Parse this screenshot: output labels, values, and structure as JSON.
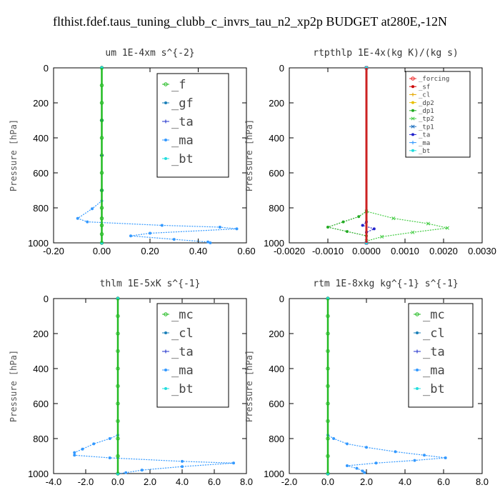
{
  "title": "flthist.fdef.taus_tuning_clubb_c_invrs_tau_n2_xp2p  BUDGET at280E,-12N",
  "chart_data": [
    {
      "type": "line",
      "title": "um  1E-4xm s^{-2}",
      "ylabel": "Pressure [hPa]",
      "xlim": [
        -0.2,
        0.6
      ],
      "ylim": [
        1000,
        0
      ],
      "xticks": [
        "-0.20",
        "0.00",
        "0.20",
        "0.40",
        "0.60"
      ],
      "yticks": [
        "0",
        "200",
        "400",
        "600",
        "800",
        "1000"
      ],
      "legend": "large",
      "series": [
        {
          "name": "_f",
          "color": "#22bb22",
          "points": [
            [
              0.0,
              0
            ],
            [
              0.0,
              100
            ],
            [
              0.0,
              200
            ],
            [
              0.0,
              300
            ],
            [
              0.0,
              400
            ],
            [
              0.0,
              500
            ],
            [
              0.0,
              600
            ],
            [
              0.0,
              700
            ],
            [
              0.0,
              800
            ],
            [
              0.0,
              860
            ],
            [
              0.0,
              900
            ],
            [
              0.0,
              950
            ],
            [
              0.0,
              1000
            ]
          ]
        },
        {
          "name": "_gf",
          "color": "#1a7fb8",
          "points": [
            [
              0.0,
              0
            ],
            [
              0.0,
              300
            ],
            [
              0.0,
              700
            ],
            [
              0.0,
              1000
            ]
          ]
        },
        {
          "name": "_ta",
          "color": "#2233cc",
          "points": [
            [
              0.0,
              0
            ],
            [
              0.0,
              500
            ],
            [
              0.0,
              1000
            ]
          ]
        },
        {
          "name": "_ma",
          "color": "#3399ff",
          "points": [
            [
              0.0,
              0
            ],
            [
              0.0,
              760
            ],
            [
              -0.04,
              805
            ],
            [
              -0.1,
              860
            ],
            [
              -0.06,
              880
            ],
            [
              0.25,
              900
            ],
            [
              0.49,
              910
            ],
            [
              0.56,
              920
            ],
            [
              0.2,
              945
            ],
            [
              0.12,
              960
            ],
            [
              0.3,
              980
            ],
            [
              0.44,
              995
            ],
            [
              0.45,
              1000
            ]
          ]
        },
        {
          "name": "_bt",
          "color": "#22dddd",
          "points": [
            [
              0.0,
              0
            ],
            [
              0.0,
              1000
            ]
          ]
        }
      ]
    },
    {
      "type": "line",
      "title": "rtpthlp  1E-4x(kg K)/(kg s)",
      "ylabel": "Pressure [hPa]",
      "xlim": [
        -0.002,
        0.003
      ],
      "ylim": [
        1000,
        0
      ],
      "xticks": [
        "-0.0020",
        "-0.0010",
        "0.0000",
        "0.0010",
        "0.0020",
        "0.0030"
      ],
      "yticks": [
        "0",
        "200",
        "400",
        "600",
        "800",
        "1000"
      ],
      "legend": "small",
      "series": [
        {
          "name": "_forcing",
          "color": "#ee2222",
          "points": [
            [
              0.0,
              0
            ],
            [
              0.0,
              1000
            ]
          ]
        },
        {
          "name": "_sf",
          "color": "#cc0000",
          "points": [
            [
              0.0,
              0
            ],
            [
              0.0,
              1000
            ]
          ]
        },
        {
          "name": "_cl",
          "color": "#e6a800",
          "points": [
            [
              0.0,
              0
            ],
            [
              0.0,
              1000
            ]
          ]
        },
        {
          "name": "_dp2",
          "color": "#e8c000",
          "points": [
            [
              0.0,
              0
            ],
            [
              0.0,
              1000
            ]
          ]
        },
        {
          "name": "_dp1",
          "color": "#22aa22",
          "points": [
            [
              0.0,
              0
            ],
            [
              0.0,
              820
            ],
            [
              -0.0002,
              850
            ],
            [
              -0.0006,
              880
            ],
            [
              -0.001,
              910
            ],
            [
              -0.0005,
              935
            ],
            [
              0.0,
              960
            ],
            [
              0.0,
              1000
            ]
          ]
        },
        {
          "name": "_tp2",
          "color": "#44cc44",
          "points": [
            [
              0.0,
              0
            ],
            [
              0.0,
              820
            ],
            [
              0.0007,
              860
            ],
            [
              0.0016,
              890
            ],
            [
              0.0021,
              915
            ],
            [
              0.0012,
              940
            ],
            [
              0.0004,
              965
            ],
            [
              0.0,
              990
            ]
          ]
        },
        {
          "name": "_tp1",
          "color": "#1a6fbf",
          "points": [
            [
              0.0,
              0
            ],
            [
              0.0,
              1000
            ]
          ]
        },
        {
          "name": "_ta",
          "color": "#2222cc",
          "points": [
            [
              0.0,
              0
            ],
            [
              0.0,
              880
            ],
            [
              -0.0001,
              900
            ],
            [
              0.0002,
              920
            ],
            [
              0.0,
              940
            ],
            [
              0.0,
              1000
            ]
          ]
        },
        {
          "name": "_ma",
          "color": "#3399ff",
          "points": [
            [
              0.0,
              0
            ],
            [
              0.0,
              1000
            ]
          ]
        },
        {
          "name": "_bt",
          "color": "#22dddd",
          "points": [
            [
              0.0,
              0
            ],
            [
              0.0,
              1000
            ]
          ]
        }
      ]
    },
    {
      "type": "line",
      "title": "thlm  1E-5xK s^{-1}",
      "ylabel": "Pressure [hPa]",
      "xlim": [
        -4.0,
        8.0
      ],
      "ylim": [
        1000,
        0
      ],
      "xticks": [
        "-4.0",
        "-2.0",
        "0.0",
        "2.0",
        "4.0",
        "6.0",
        "8.0"
      ],
      "yticks": [
        "0",
        "200",
        "400",
        "600",
        "800",
        "1000"
      ],
      "legend": "large",
      "series": [
        {
          "name": "_mc",
          "color": "#22bb22",
          "points": [
            [
              0.0,
              0
            ],
            [
              0.0,
              100
            ],
            [
              0.0,
              200
            ],
            [
              0.0,
              300
            ],
            [
              0.0,
              400
            ],
            [
              0.0,
              500
            ],
            [
              0.0,
              600
            ],
            [
              0.0,
              700
            ],
            [
              0.0,
              800
            ],
            [
              0.0,
              900
            ],
            [
              0.0,
              1000
            ]
          ]
        },
        {
          "name": "_cl",
          "color": "#1a7fb8",
          "points": [
            [
              0.0,
              0
            ],
            [
              0.0,
              1000
            ]
          ]
        },
        {
          "name": "_ta",
          "color": "#2233cc",
          "points": [
            [
              0.0,
              0
            ],
            [
              0.0,
              1000
            ]
          ]
        },
        {
          "name": "_ma",
          "color": "#3399ff",
          "points": [
            [
              0.0,
              0
            ],
            [
              0.0,
              780
            ],
            [
              -0.5,
              800
            ],
            [
              -1.5,
              830
            ],
            [
              -2.2,
              860
            ],
            [
              -2.7,
              880
            ],
            [
              -2.7,
              895
            ],
            [
              -0.5,
              910
            ],
            [
              4.0,
              930
            ],
            [
              7.2,
              940
            ],
            [
              4.0,
              960
            ],
            [
              1.5,
              980
            ],
            [
              0.5,
              995
            ],
            [
              0.0,
              1000
            ]
          ]
        },
        {
          "name": "_bt",
          "color": "#22dddd",
          "points": [
            [
              0.0,
              0
            ],
            [
              0.0,
              1000
            ]
          ]
        }
      ]
    },
    {
      "type": "line",
      "title": "rtm  1E-8xkg kg^{-1} s^{-1}",
      "ylabel": "Pressure [hPa]",
      "xlim": [
        -2.0,
        8.0
      ],
      "ylim": [
        1000,
        0
      ],
      "xticks": [
        "-2.0",
        "0.0",
        "2.0",
        "4.0",
        "6.0",
        "8.0"
      ],
      "yticks": [
        "0",
        "200",
        "400",
        "600",
        "800",
        "1000"
      ],
      "legend": "large",
      "series": [
        {
          "name": "_mc",
          "color": "#22bb22",
          "points": [
            [
              0.0,
              0
            ],
            [
              0.0,
              100
            ],
            [
              0.0,
              200
            ],
            [
              0.0,
              300
            ],
            [
              0.0,
              400
            ],
            [
              0.0,
              500
            ],
            [
              0.0,
              600
            ],
            [
              0.0,
              700
            ],
            [
              0.0,
              800
            ],
            [
              0.0,
              900
            ],
            [
              0.0,
              1000
            ]
          ]
        },
        {
          "name": "_cl",
          "color": "#1a7fb8",
          "points": [
            [
              0.0,
              0
            ],
            [
              0.0,
              1000
            ]
          ]
        },
        {
          "name": "_ta",
          "color": "#2233cc",
          "points": [
            [
              0.0,
              0
            ],
            [
              0.0,
              1000
            ]
          ]
        },
        {
          "name": "_ma",
          "color": "#3399ff",
          "points": [
            [
              0.0,
              0
            ],
            [
              0.0,
              780
            ],
            [
              0.3,
              800
            ],
            [
              1.0,
              830
            ],
            [
              2.0,
              850
            ],
            [
              3.5,
              875
            ],
            [
              5.0,
              895
            ],
            [
              6.1,
              910
            ],
            [
              4.5,
              925
            ],
            [
              2.5,
              940
            ],
            [
              1.0,
              955
            ],
            [
              1.5,
              970
            ],
            [
              1.8,
              985
            ],
            [
              1.9,
              995
            ]
          ]
        },
        {
          "name": "_bt",
          "color": "#22dddd",
          "points": [
            [
              0.0,
              0
            ],
            [
              0.0,
              1000
            ]
          ]
        }
      ]
    }
  ]
}
